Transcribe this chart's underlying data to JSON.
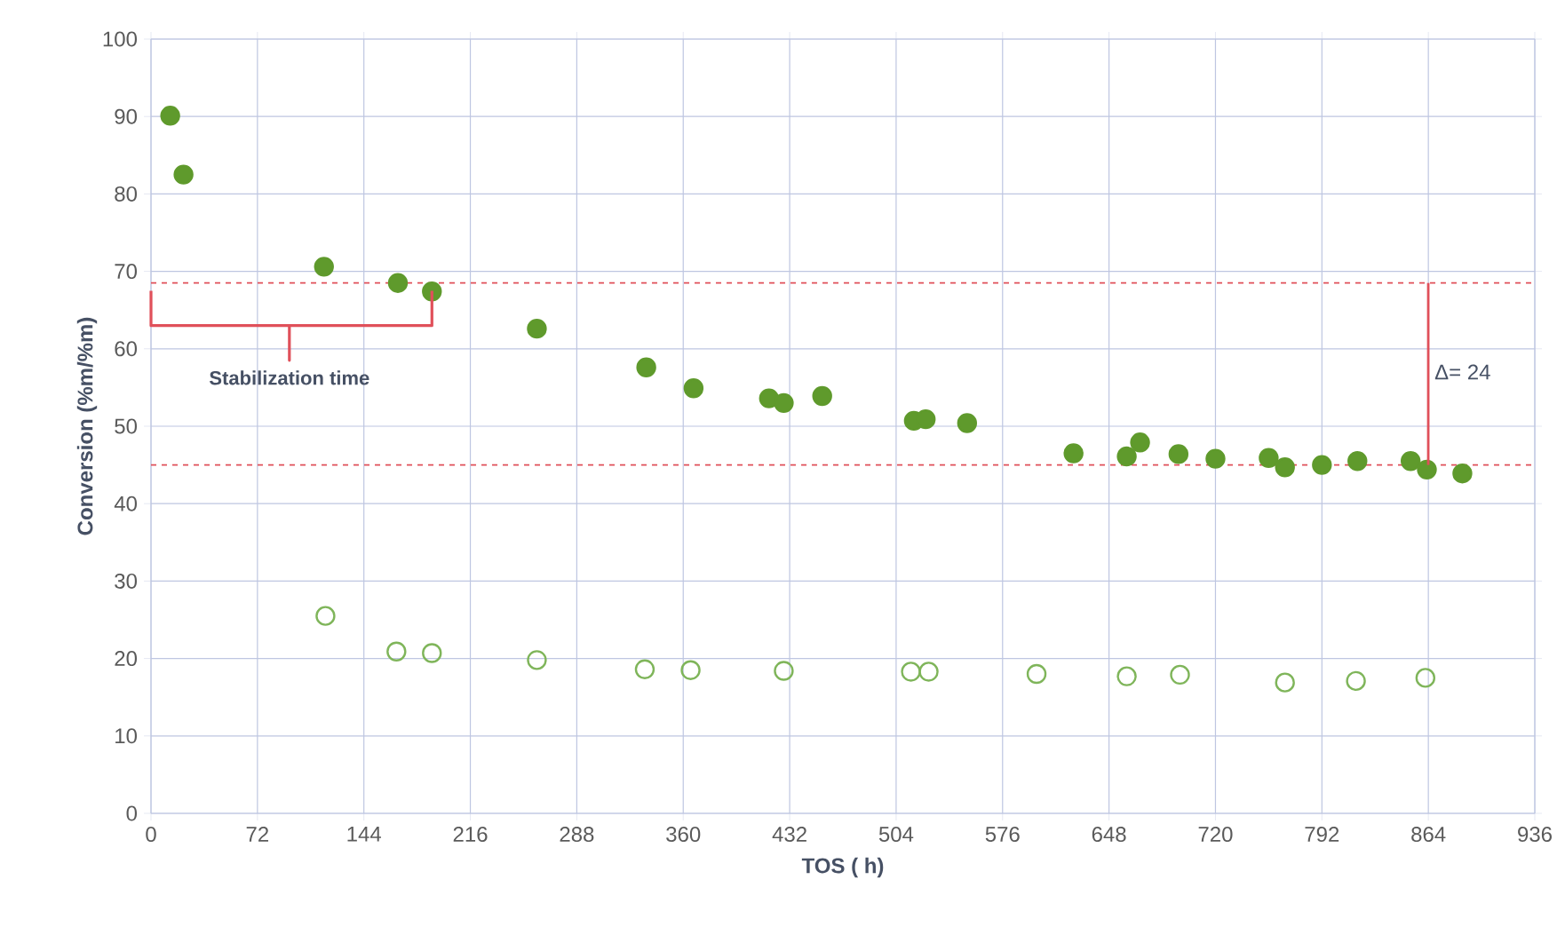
{
  "chart_data": {
    "type": "scatter",
    "xlabel": "TOS ( h)",
    "ylabel": "Conversion (%m/%m)",
    "xlim": [
      0,
      936
    ],
    "xticks": [
      0,
      72,
      144,
      216,
      288,
      360,
      432,
      504,
      576,
      648,
      720,
      792,
      864,
      936
    ],
    "ylim": [
      0,
      100
    ],
    "yticks": [
      0,
      10,
      20,
      30,
      40,
      50,
      60,
      70,
      80,
      90,
      100
    ],
    "grid": true,
    "marker": "circle",
    "series": [
      {
        "color": "#5f9a2c",
        "x": [
          13,
          22,
          117,
          167,
          190,
          261,
          335,
          367,
          418,
          428,
          454,
          516,
          524,
          552,
          624,
          660,
          669,
          695,
          720,
          756,
          767,
          792,
          816,
          852,
          863,
          887
        ],
        "values": [
          90.1,
          82.5,
          70.6,
          68.5,
          67.4,
          62.6,
          57.6,
          54.9,
          53.6,
          53.0,
          53.9,
          50.7,
          50.9,
          50.4,
          46.5,
          46.1,
          47.9,
          46.4,
          45.8,
          45.9,
          44.7,
          45.0,
          45.5,
          45.5,
          44.4,
          43.9
        ]
      },
      {
        "color": "#7fb55a",
        "x": [
          118,
          166,
          190,
          261,
          334,
          365,
          428,
          514,
          526,
          599,
          660,
          696,
          767,
          815,
          862
        ],
        "values": [
          25.5,
          20.9,
          20.7,
          19.8,
          18.6,
          18.5,
          18.4,
          18.3,
          18.3,
          18.0,
          17.7,
          17.9,
          16.9,
          17.1,
          17.5
        ]
      }
    ],
    "ref_lines": [
      {
        "axis": "y",
        "value": 68.5,
        "color": "#e0505a",
        "line_style": "dashed"
      },
      {
        "axis": "y",
        "value": 45,
        "color": "#e0505a",
        "line_style": "dashed"
      }
    ],
    "annotations": [
      "Stabilization time",
      "Δ= 24"
    ]
  }
}
